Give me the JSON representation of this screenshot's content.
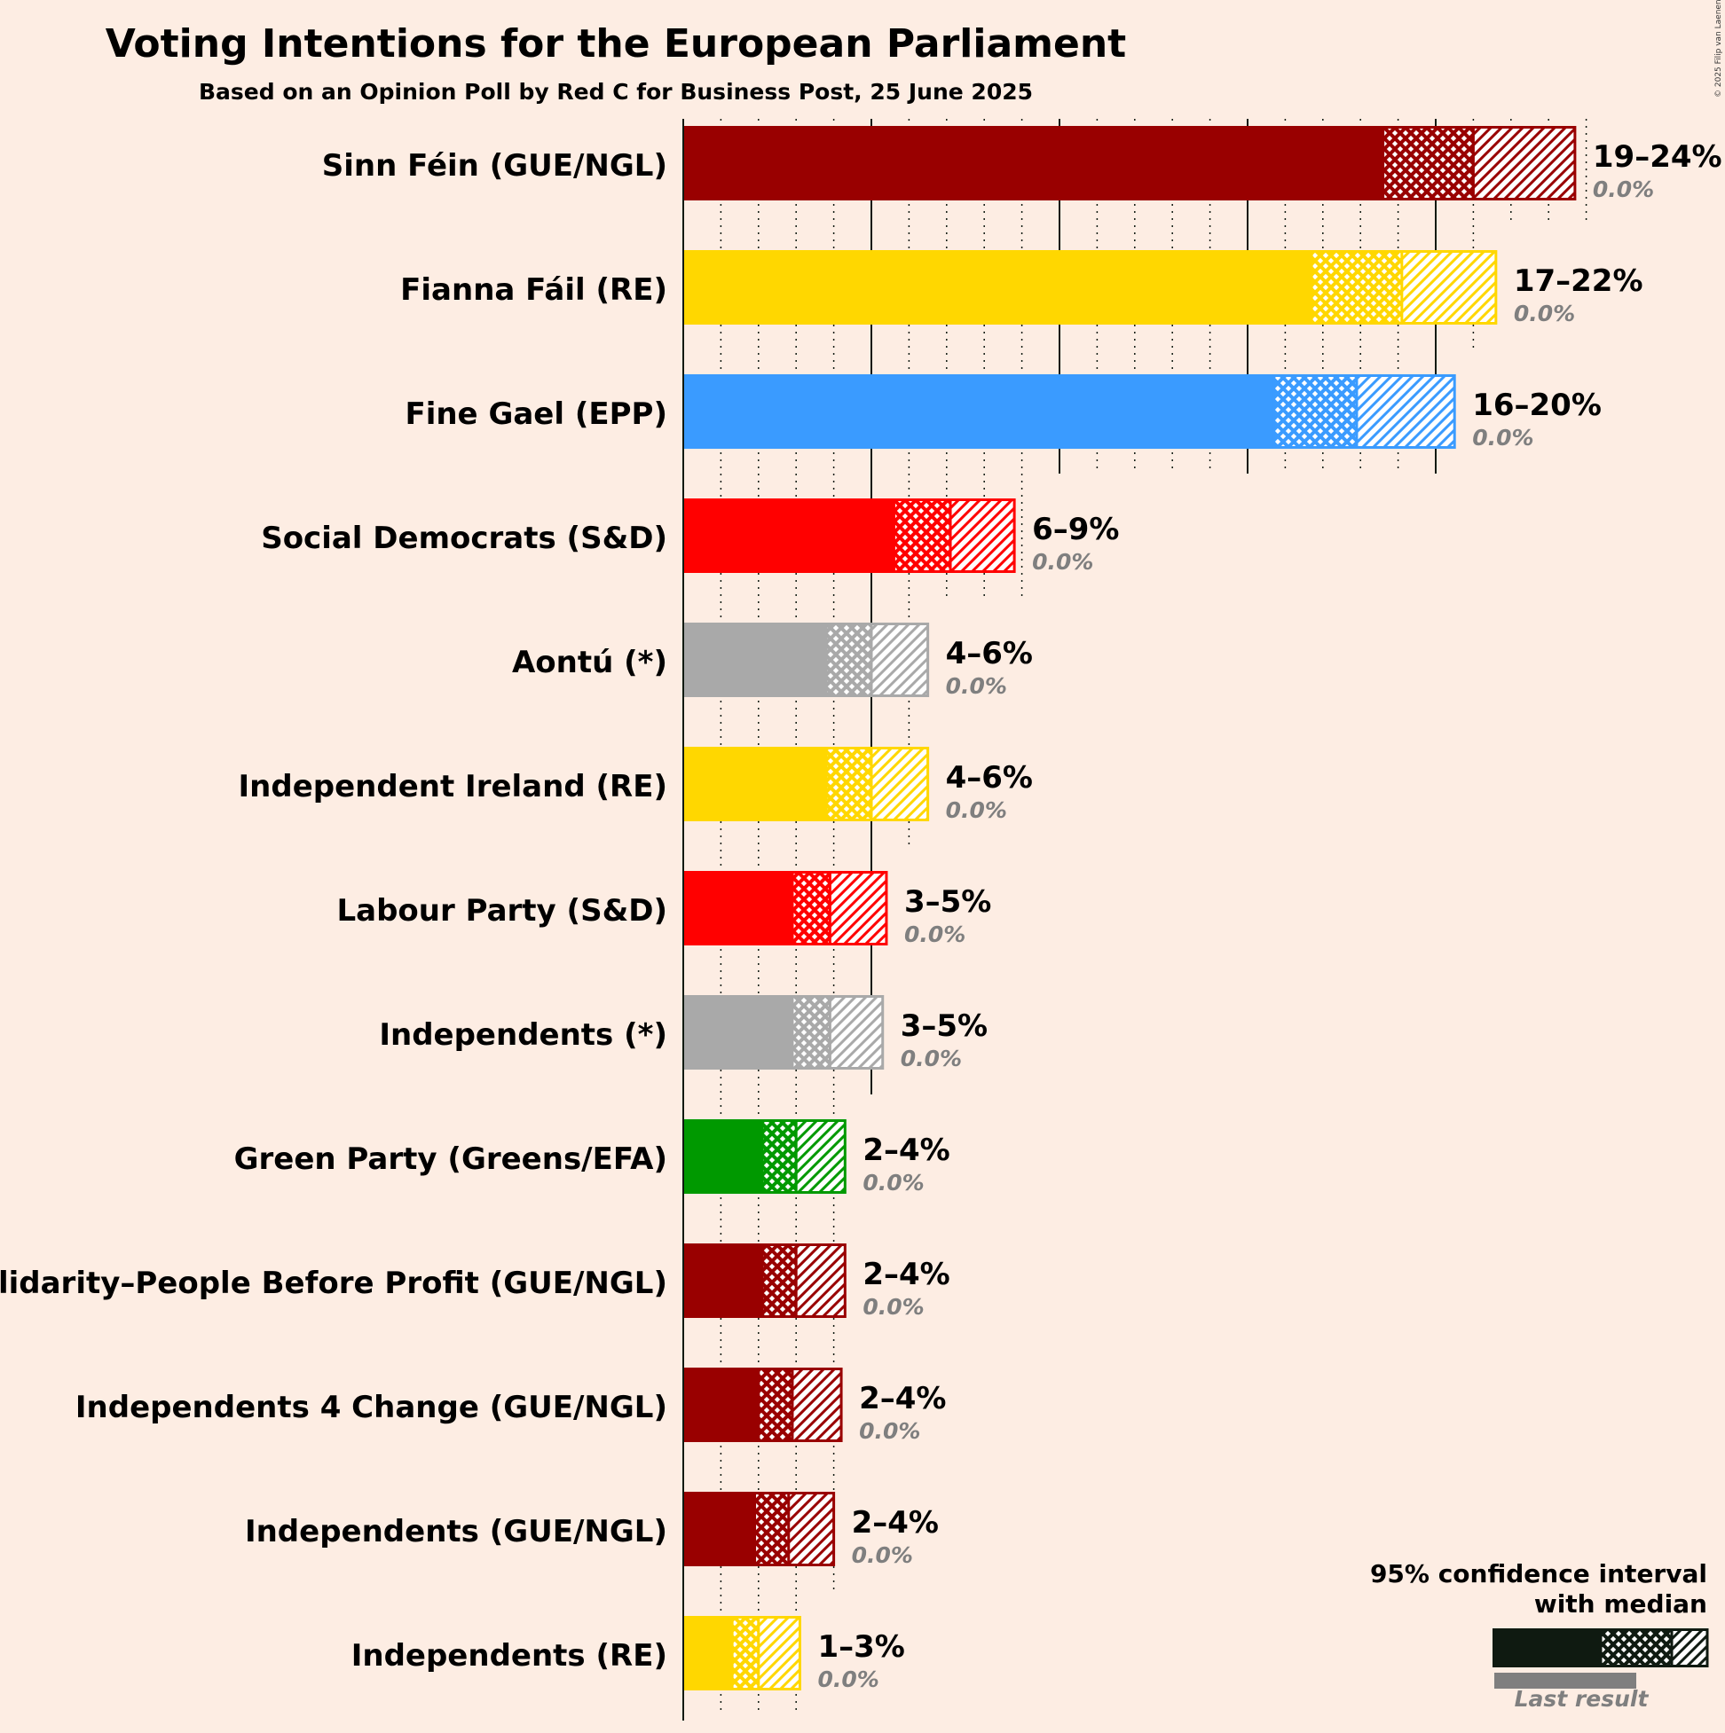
{
  "copyright": "© 2025 Filip van Laenen",
  "chart_data": {
    "type": "bar",
    "title": "Voting Intentions for the European Parliament",
    "subtitle": "Based on an Opinion Poll by Red C for Business Post, 25 June 2025",
    "unit": "%",
    "grid": true,
    "legend": {
      "position": "bottom-right",
      "line1": "95% confidence interval",
      "line2": "with median",
      "last_result": "Last result"
    },
    "parties": [
      {
        "name": "Sinn Féin (GUE/NGL)",
        "color": "#990000",
        "ci_low": 18.6,
        "median": 21.0,
        "ci_high": 23.7,
        "range_label": "19–24%",
        "last_label": "0.0%",
        "last_result": 0.0
      },
      {
        "name": "Fianna Fáil (RE)",
        "color": "#FFD700",
        "ci_low": 16.7,
        "median": 19.1,
        "ci_high": 21.6,
        "range_label": "17–22%",
        "last_label": "0.0%",
        "last_result": 0.0
      },
      {
        "name": "Fine Gael (EPP)",
        "color": "#3A9BFF",
        "ci_low": 15.7,
        "median": 17.9,
        "ci_high": 20.5,
        "range_label": "16–20%",
        "last_label": "0.0%",
        "last_result": 0.0
      },
      {
        "name": "Social Democrats (S&D)",
        "color": "#FF0000",
        "ci_low": 5.6,
        "median": 7.1,
        "ci_high": 8.8,
        "range_label": "6–9%",
        "last_label": "0.0%",
        "last_result": 0.0
      },
      {
        "name": "Aontú (*)",
        "color": "#A9A9A9",
        "ci_low": 3.8,
        "median": 5.0,
        "ci_high": 6.5,
        "range_label": "4–6%",
        "last_label": "0.0%",
        "last_result": 0.0
      },
      {
        "name": "Independent Ireland (RE)",
        "color": "#FFD700",
        "ci_low": 3.8,
        "median": 5.0,
        "ci_high": 6.5,
        "range_label": "4–6%",
        "last_label": "0.0%",
        "last_result": 0.0
      },
      {
        "name": "Labour Party (S&D)",
        "color": "#FF0000",
        "ci_low": 2.9,
        "median": 3.9,
        "ci_high": 5.4,
        "range_label": "3–5%",
        "last_label": "0.0%",
        "last_result": 0.0
      },
      {
        "name": "Independents (*)",
        "color": "#A9A9A9",
        "ci_low": 2.9,
        "median": 3.9,
        "ci_high": 5.3,
        "range_label": "3–5%",
        "last_label": "0.0%",
        "last_result": 0.0
      },
      {
        "name": "Green Party (Greens/EFA)",
        "color": "#009900",
        "ci_low": 2.1,
        "median": 3.0,
        "ci_high": 4.3,
        "range_label": "2–4%",
        "last_label": "0.0%",
        "last_result": 0.0
      },
      {
        "name": "Solidarity–People Before Profit (GUE/NGL)",
        "color": "#990000",
        "ci_low": 2.1,
        "median": 3.0,
        "ci_high": 4.3,
        "range_label": "2–4%",
        "last_label": "0.0%",
        "last_result": 0.0
      },
      {
        "name": "Independents 4 Change (GUE/NGL)",
        "color": "#990000",
        "ci_low": 2.0,
        "median": 2.9,
        "ci_high": 4.2,
        "range_label": "2–4%",
        "last_label": "0.0%",
        "last_result": 0.0
      },
      {
        "name": "Independents (GUE/NGL)",
        "color": "#990000",
        "ci_low": 1.9,
        "median": 2.8,
        "ci_high": 4.0,
        "range_label": "2–4%",
        "last_label": "0.0%",
        "last_result": 0.0
      },
      {
        "name": "Independents (RE)",
        "color": "#FFD700",
        "ci_low": 1.3,
        "median": 2.0,
        "ci_high": 3.1,
        "range_label": "1–3%",
        "last_label": "0.0%",
        "last_result": 0.0
      }
    ]
  }
}
